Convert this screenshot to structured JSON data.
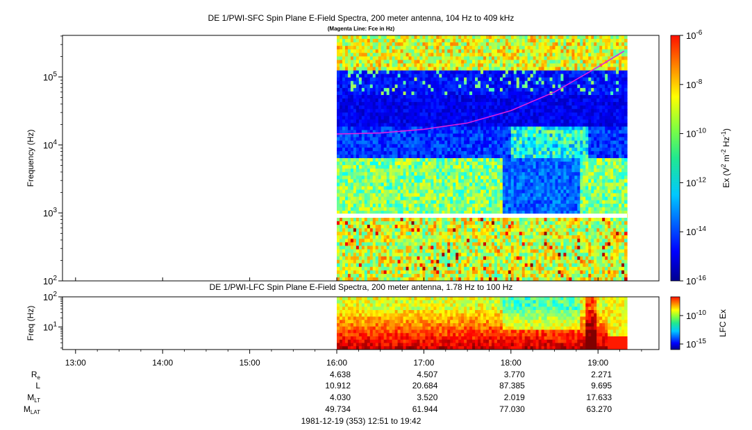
{
  "chart_data": [
    {
      "type": "heatmap",
      "title": "DE 1/PWI-SFC  Spin Plane E-Field Spectra, 200 meter antenna, 104 Hz to 409 kHz",
      "subtitle": "(Magenta Line: Fce in Hz)",
      "ylabel": "Frequency (Hz)",
      "ylim": [
        100,
        409000
      ],
      "y_scale": "log",
      "y_ticks": [
        {
          "value": 100,
          "base": "10",
          "exp": "2"
        },
        {
          "value": 1000,
          "base": "10",
          "exp": "3"
        },
        {
          "value": 10000,
          "base": "10",
          "exp": "4"
        },
        {
          "value": 100000,
          "base": "10",
          "exp": "5"
        }
      ],
      "data_time_range": [
        "16:00",
        "19:20"
      ],
      "fce_line": {
        "color": "#e020e0",
        "x_hours": [
          16.0,
          16.5,
          17.0,
          17.5,
          18.0,
          18.5,
          19.0,
          19.3
        ],
        "y_hz": [
          14500,
          15000,
          17000,
          21000,
          32000,
          60000,
          140000,
          240000
        ]
      },
      "colorbar": {
        "label_parts": [
          "Ex (V",
          "2",
          " m",
          "-2",
          " Hz",
          "-1",
          ")"
        ],
        "scale": "log",
        "range": [
          1e-16,
          1e-06
        ],
        "ticks": [
          {
            "value": 1e-06,
            "base": "10",
            "exp": "-6"
          },
          {
            "value": 1e-08,
            "base": "10",
            "exp": "-8"
          },
          {
            "value": 1e-10,
            "base": "10",
            "exp": "-10"
          },
          {
            "value": 1e-12,
            "base": "10",
            "exp": "-12"
          },
          {
            "value": 1e-14,
            "base": "10",
            "exp": "-14"
          },
          {
            "value": 1e-16,
            "base": "10",
            "exp": "-16"
          }
        ]
      }
    },
    {
      "type": "heatmap",
      "title": "DE 1/PWI-LFC  Spin Plane E-Field Spectra, 200 meter antenna, 1.78 Hz to 100 Hz",
      "ylabel": "Freq (Hz)",
      "ylim": [
        1.78,
        100
      ],
      "y_scale": "log",
      "y_ticks": [
        {
          "value": 100,
          "base": "10",
          "exp": "2"
        },
        {
          "value": 10,
          "base": "10",
          "exp": "1"
        }
      ],
      "data_time_range": [
        "16:00",
        "19:20"
      ],
      "colorbar": {
        "label": "LFC Ex",
        "scale": "log",
        "ticks": [
          {
            "value": 1e-10,
            "base": "10",
            "exp": "-10"
          },
          {
            "value": 1e-15,
            "base": "10",
            "exp": "-15"
          }
        ]
      }
    }
  ],
  "time_axis": {
    "range_hours": [
      12.85,
      19.7
    ],
    "ticks": [
      {
        "hour": 13,
        "label": "13:00"
      },
      {
        "hour": 14,
        "label": "14:00"
      },
      {
        "hour": 15,
        "label": "15:00"
      },
      {
        "hour": 16,
        "label": "16:00"
      },
      {
        "hour": 17,
        "label": "17:00"
      },
      {
        "hour": 18,
        "label": "18:00"
      },
      {
        "hour": 19,
        "label": "19:00"
      }
    ]
  },
  "ephemeris": {
    "rows": [
      {
        "label": "R",
        "sub": "e",
        "values": [
          "4.638",
          "4.507",
          "3.770",
          "2.271"
        ]
      },
      {
        "label": "L",
        "sub": "",
        "values": [
          "10.912",
          "20.684",
          "87.385",
          "9.695"
        ]
      },
      {
        "label": "M",
        "sub": "LT",
        "values": [
          "4.030",
          "3.520",
          "2.019",
          "17.633"
        ]
      },
      {
        "label": "M",
        "sub": "LAT",
        "values": [
          "49.734",
          "61.944",
          "77.030",
          "63.270"
        ]
      }
    ],
    "value_hours": [
      16,
      17,
      18,
      19
    ]
  },
  "footer": "1981-12-19 (353) 12:51 to 19:42"
}
